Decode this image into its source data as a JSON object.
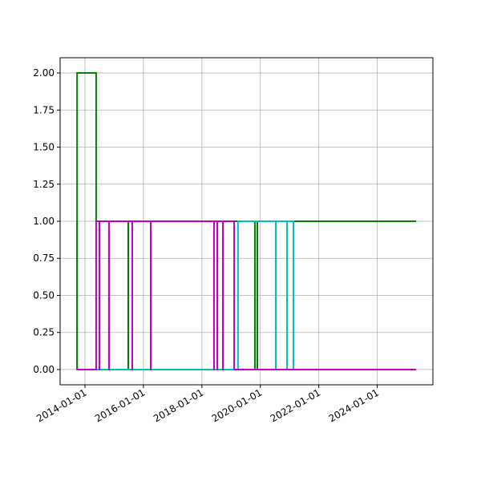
{
  "chart_data": {
    "type": "line",
    "drawstyle": "steps-post",
    "grid": true,
    "xlim": [
      "2013-02-24",
      "2025-11-27"
    ],
    "xticks": [
      "2014-01-01",
      "2016-01-01",
      "2018-01-01",
      "2020-01-01",
      "2022-01-01",
      "2024-01-01"
    ],
    "ylim": [
      -0.103,
      2.103
    ],
    "yticks": [
      {
        "value": 0,
        "label": "0.00"
      },
      {
        "value": 0.25,
        "label": "0.25"
      },
      {
        "value": 0.5,
        "label": "0.50"
      },
      {
        "value": 0.75,
        "label": "0.75"
      },
      {
        "value": 1,
        "label": "1.00"
      },
      {
        "value": 1.25,
        "label": "1.25"
      },
      {
        "value": 1.5,
        "label": "1.50"
      },
      {
        "value": 1.75,
        "label": "1.75"
      },
      {
        "value": 2,
        "label": "2.00"
      }
    ],
    "series": [
      {
        "color": "#d62020",
        "x": [
          "2013-09-23",
          "2013-09-24",
          "2025-05-01"
        ],
        "values": [
          1,
          0,
          0
        ]
      },
      {
        "color": "#008000",
        "x": [
          "2013-09-23",
          "2013-09-24",
          "2014-05-20",
          "2015-06-25",
          "2015-06-26",
          "2019-10-25",
          "2019-11-25",
          "2025-05-01"
        ],
        "values": [
          0,
          2,
          1,
          0,
          1,
          0,
          1,
          1
        ]
      },
      {
        "color": "#00bfbf",
        "x": [
          "2013-09-24",
          "2019-03-28",
          "2020-07-12",
          "2020-07-13",
          "2020-11-30",
          "2020-12-01",
          "2021-02-18",
          "2025-05-01"
        ],
        "values": [
          0,
          1,
          0,
          1,
          0,
          1,
          0,
          0
        ]
      },
      {
        "color": "#bf00bf",
        "x": [
          "2013-09-24",
          "2014-05-20",
          "2014-06-30",
          "2014-07-01",
          "2014-10-27",
          "2014-10-28",
          "2015-08-14",
          "2015-08-15",
          "2016-04-01",
          "2016-04-02",
          "2018-06-01",
          "2018-06-02",
          "2018-07-12",
          "2018-07-13",
          "2018-09-20",
          "2018-09-21",
          "2019-02-08",
          "2025-05-01"
        ],
        "values": [
          0,
          1,
          0,
          1,
          0,
          1,
          0,
          1,
          0,
          1,
          0,
          1,
          0,
          1,
          0,
          1,
          0,
          0
        ]
      }
    ]
  }
}
